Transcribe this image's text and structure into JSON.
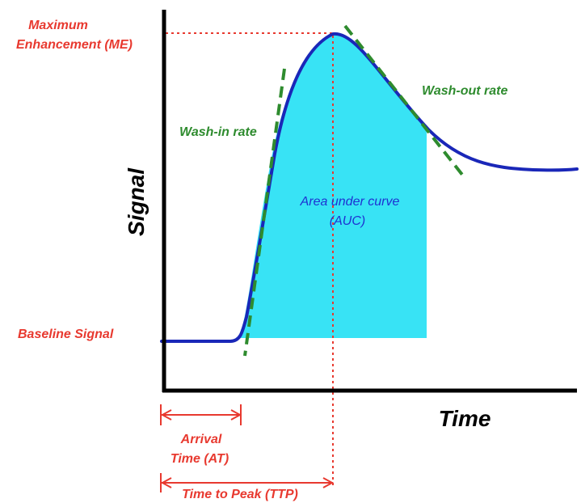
{
  "labels": {
    "max_enhancement_line1": "Maximum",
    "max_enhancement_line2": "Enhancement (ME)",
    "baseline_signal": "Baseline Signal",
    "wash_in_rate": "Wash-in rate",
    "wash_out_rate": "Wash-out rate",
    "auc_line1": "Area under curve",
    "auc_line2": "(AUC)",
    "y_axis": "Signal",
    "x_axis": "Time",
    "arrival_time_line1": "Arrival",
    "arrival_time_line2": "Time (AT)",
    "time_to_peak": "Time to Peak (TTP)"
  },
  "colors": {
    "curve": "#1a27b8",
    "auc_fill": "#38e3f5",
    "annotation_red": "#e8392f",
    "tangent_green": "#2e8b2e",
    "axis": "#000000"
  }
}
